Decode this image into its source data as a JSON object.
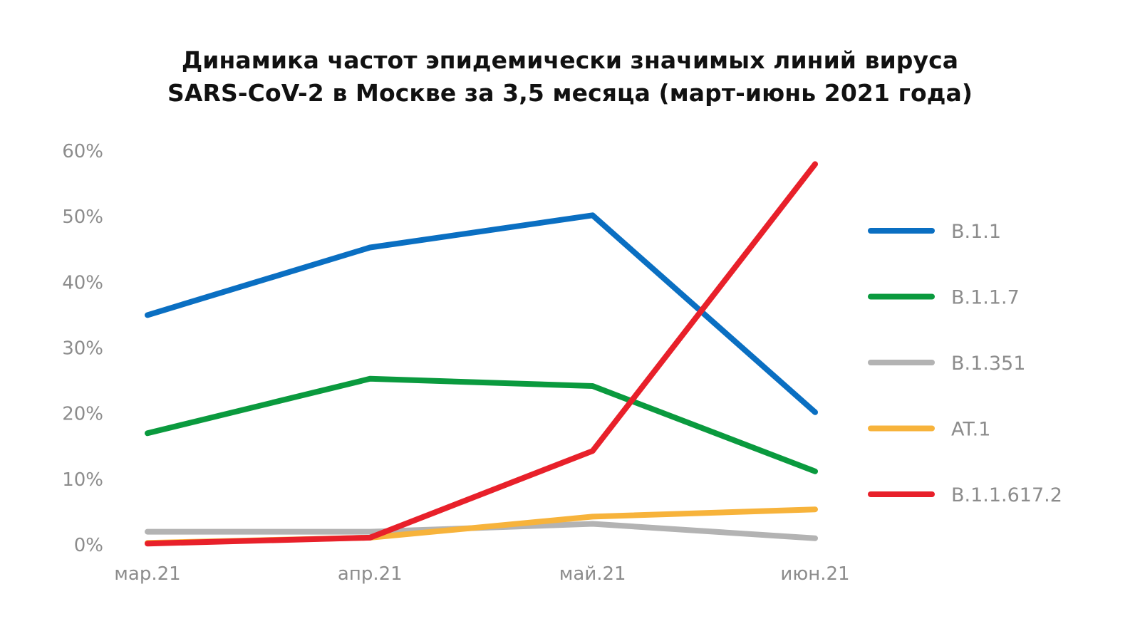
{
  "chart_data": {
    "type": "line",
    "title_lines": [
      "Динамика частот эпидемически значимых линий вируса",
      "SARS-CoV-2 в Москве за 3,5 месяца (март-июнь 2021 года)"
    ],
    "categories": [
      "мар.21",
      "апр.21",
      "май.21",
      "июн.21"
    ],
    "y_ticks": [
      "0%",
      "10%",
      "20%",
      "30%",
      "40%",
      "50%",
      "60%"
    ],
    "ylim": [
      0,
      60
    ],
    "grid": false,
    "legend_position": "right",
    "series": [
      {
        "name": "B.1.1",
        "color": "#0a6fc2",
        "values": [
          35,
          45.3,
          50.2,
          20.2
        ]
      },
      {
        "name": "B.1.1.7",
        "color": "#0a9a3e",
        "values": [
          17,
          25.3,
          24.2,
          11.2
        ]
      },
      {
        "name": "B.1.351",
        "color": "#b3b3b3",
        "values": [
          2,
          2,
          3.2,
          1
        ]
      },
      {
        "name": "AT.1",
        "color": "#f7b33b",
        "values": [
          0.3,
          1.1,
          4.3,
          5.4
        ]
      },
      {
        "name": "B.1.1.617.2",
        "color": "#e8202a",
        "values": [
          0.2,
          1.1,
          14.3,
          58
        ]
      }
    ]
  }
}
